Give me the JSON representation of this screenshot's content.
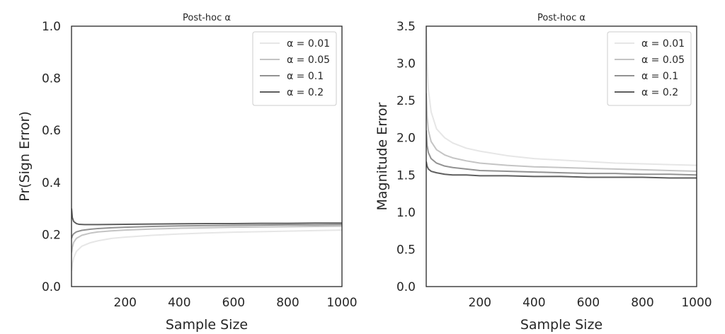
{
  "chart_data": [
    {
      "type": "line",
      "title": "Post-hoc α",
      "xlabel": "Sample Size",
      "ylabel": "Pr(Sign Error)",
      "xlim": [
        2,
        1000
      ],
      "ylim": [
        0,
        1.0
      ],
      "xticks": [
        200,
        400,
        600,
        800,
        1000
      ],
      "yticks": [
        0.0,
        0.2,
        0.4,
        0.6,
        0.8,
        1.0
      ],
      "ytick_labels": [
        "0.0",
        "0.2",
        "0.4",
        "0.6",
        "0.8",
        "1.0"
      ],
      "grid": false,
      "legend_position": "top-right",
      "series": [
        {
          "name": "α = 0.01",
          "color": "#e6e6e6",
          "x": [
            2,
            5,
            10,
            20,
            40,
            70,
            100,
            150,
            200,
            300,
            400,
            500,
            600,
            700,
            800,
            900,
            1000
          ],
          "y": [
            0.06,
            0.085,
            0.11,
            0.135,
            0.155,
            0.168,
            0.176,
            0.185,
            0.19,
            0.197,
            0.202,
            0.206,
            0.209,
            0.211,
            0.213,
            0.215,
            0.217
          ]
        },
        {
          "name": "α = 0.05",
          "color": "#c4c4c4",
          "x": [
            2,
            5,
            10,
            20,
            40,
            70,
            100,
            150,
            200,
            300,
            400,
            500,
            600,
            700,
            800,
            900,
            1000
          ],
          "y": [
            0.13,
            0.15,
            0.17,
            0.185,
            0.197,
            0.205,
            0.21,
            0.214,
            0.217,
            0.221,
            0.224,
            0.226,
            0.228,
            0.229,
            0.23,
            0.231,
            0.232
          ]
        },
        {
          "name": "α = 0.1",
          "color": "#929292",
          "x": [
            2,
            5,
            10,
            20,
            40,
            70,
            100,
            150,
            200,
            300,
            400,
            500,
            600,
            700,
            800,
            900,
            1000
          ],
          "y": [
            0.185,
            0.195,
            0.203,
            0.21,
            0.216,
            0.22,
            0.223,
            0.226,
            0.228,
            0.231,
            0.233,
            0.234,
            0.235,
            0.236,
            0.237,
            0.237,
            0.238
          ]
        },
        {
          "name": "α = 0.2",
          "color": "#5f5f5f",
          "x": [
            2,
            5,
            10,
            20,
            30,
            50,
            100,
            200,
            300,
            400,
            500,
            600,
            700,
            800,
            900,
            1000
          ],
          "y": [
            0.3,
            0.265,
            0.25,
            0.242,
            0.239,
            0.238,
            0.238,
            0.239,
            0.24,
            0.241,
            0.242,
            0.242,
            0.243,
            0.243,
            0.244,
            0.244
          ]
        }
      ]
    },
    {
      "type": "line",
      "title": "Post-hoc α",
      "xlabel": "Sample Size",
      "ylabel": "Magnitude Error",
      "xlim": [
        2,
        1000
      ],
      "ylim": [
        0,
        3.5
      ],
      "xticks": [
        200,
        400,
        600,
        800,
        1000
      ],
      "yticks": [
        0.0,
        0.5,
        1.0,
        1.5,
        2.0,
        2.5,
        3.0,
        3.5
      ],
      "ytick_labels": [
        "0.0",
        "0.5",
        "1.0",
        "1.5",
        "2.0",
        "2.5",
        "3.0",
        "3.5"
      ],
      "grid": false,
      "legend_position": "top-right",
      "series": [
        {
          "name": "α = 0.01",
          "color": "#e6e6e6",
          "x": [
            2,
            5,
            10,
            20,
            40,
            70,
            100,
            150,
            200,
            300,
            400,
            500,
            600,
            700,
            800,
            900,
            1000
          ],
          "y": [
            3.5,
            3.0,
            2.65,
            2.35,
            2.12,
            2.0,
            1.93,
            1.86,
            1.82,
            1.76,
            1.72,
            1.7,
            1.68,
            1.66,
            1.65,
            1.64,
            1.63
          ]
        },
        {
          "name": "α = 0.05",
          "color": "#c4c4c4",
          "x": [
            2,
            5,
            10,
            20,
            40,
            70,
            100,
            150,
            200,
            300,
            400,
            500,
            600,
            700,
            800,
            900,
            1000
          ],
          "y": [
            2.6,
            2.3,
            2.1,
            1.95,
            1.84,
            1.77,
            1.73,
            1.69,
            1.66,
            1.63,
            1.61,
            1.6,
            1.59,
            1.58,
            1.57,
            1.56,
            1.55
          ]
        },
        {
          "name": "α = 0.1",
          "color": "#929292",
          "x": [
            2,
            5,
            10,
            20,
            40,
            70,
            100,
            150,
            200,
            300,
            400,
            500,
            600,
            700,
            800,
            900,
            1000
          ],
          "y": [
            2.1,
            1.9,
            1.8,
            1.72,
            1.66,
            1.62,
            1.6,
            1.58,
            1.56,
            1.55,
            1.54,
            1.53,
            1.52,
            1.52,
            1.51,
            1.51,
            1.5
          ]
        },
        {
          "name": "α = 0.2",
          "color": "#5f5f5f",
          "x": [
            2,
            5,
            10,
            20,
            40,
            70,
            100,
            150,
            200,
            300,
            400,
            500,
            600,
            700,
            800,
            900,
            1000
          ],
          "y": [
            1.68,
            1.62,
            1.58,
            1.55,
            1.53,
            1.51,
            1.5,
            1.5,
            1.49,
            1.49,
            1.48,
            1.48,
            1.47,
            1.47,
            1.47,
            1.46,
            1.46
          ]
        }
      ]
    }
  ]
}
